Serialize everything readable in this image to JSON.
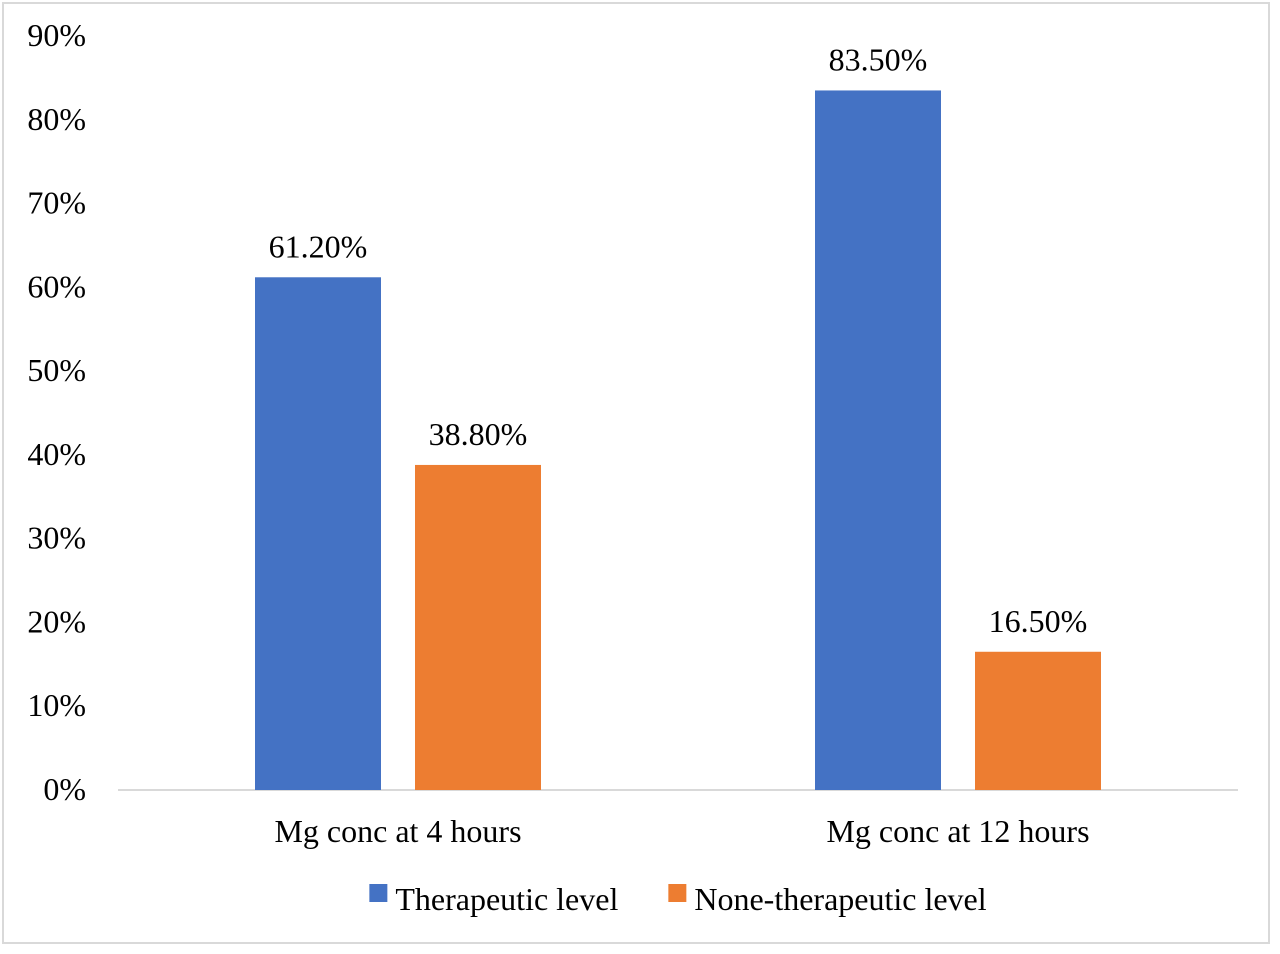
{
  "chart_data": {
    "type": "bar",
    "categories": [
      "Mg conc at 4 hours",
      "Mg conc at 12 hours"
    ],
    "series": [
      {
        "name": "Therapeutic level",
        "values": [
          61.2,
          83.5
        ],
        "labels": [
          "61.20%",
          "83.50%"
        ],
        "color": "#4472c4"
      },
      {
        "name": "None-therapeutic level",
        "values": [
          38.8,
          16.5
        ],
        "labels": [
          "38.80%",
          "16.50%"
        ],
        "color": "#ed7d31"
      }
    ],
    "yticks": [
      "0%",
      "10%",
      "20%",
      "30%",
      "40%",
      "50%",
      "60%",
      "70%",
      "80%",
      "90%"
    ],
    "ylim": [
      0,
      90
    ],
    "grid": false,
    "legend": "bottom",
    "title": "",
    "xlabel": "",
    "ylabel": ""
  }
}
